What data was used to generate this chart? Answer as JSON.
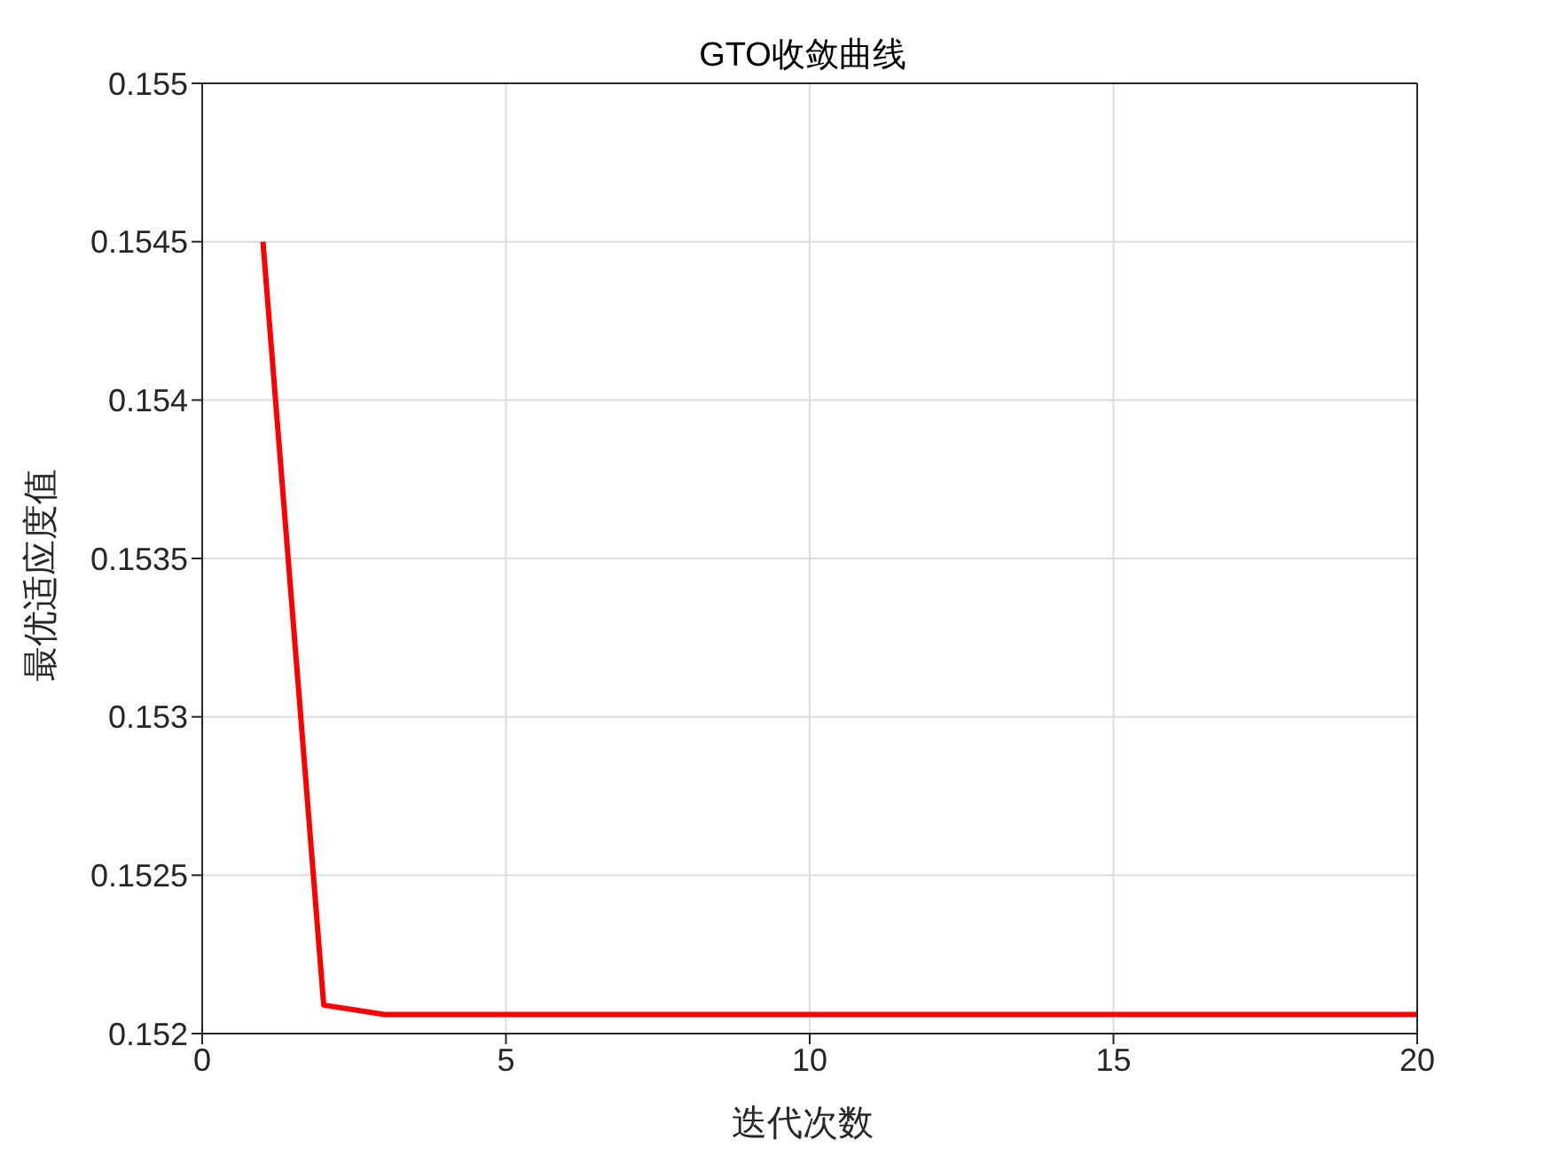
{
  "chart_data": {
    "type": "line",
    "title": "GTO收敛曲线",
    "xlabel": "迭代次数",
    "ylabel": "最优适应度值",
    "x": [
      1,
      2,
      3,
      4,
      5,
      6,
      7,
      8,
      9,
      10,
      11,
      12,
      13,
      14,
      15,
      16,
      17,
      18,
      19,
      20
    ],
    "series": [
      {
        "color": "#ff0000",
        "values": [
          0.1545,
          0.15209,
          0.15206,
          0.15206,
          0.15206,
          0.15206,
          0.15206,
          0.15206,
          0.15206,
          0.15206,
          0.15206,
          0.15206,
          0.15206,
          0.15206,
          0.15206,
          0.15206,
          0.15206,
          0.15206,
          0.15206,
          0.15206
        ]
      }
    ],
    "xlim": [
      0,
      20
    ],
    "xticks": [
      0,
      5,
      10,
      15,
      20
    ],
    "ylim": [
      0.152,
      0.155
    ],
    "yticks": [
      0.152,
      0.1525,
      0.153,
      0.1535,
      0.154,
      0.1545,
      0.155
    ],
    "grid": true,
    "marker": "none",
    "line_style": "solid"
  }
}
